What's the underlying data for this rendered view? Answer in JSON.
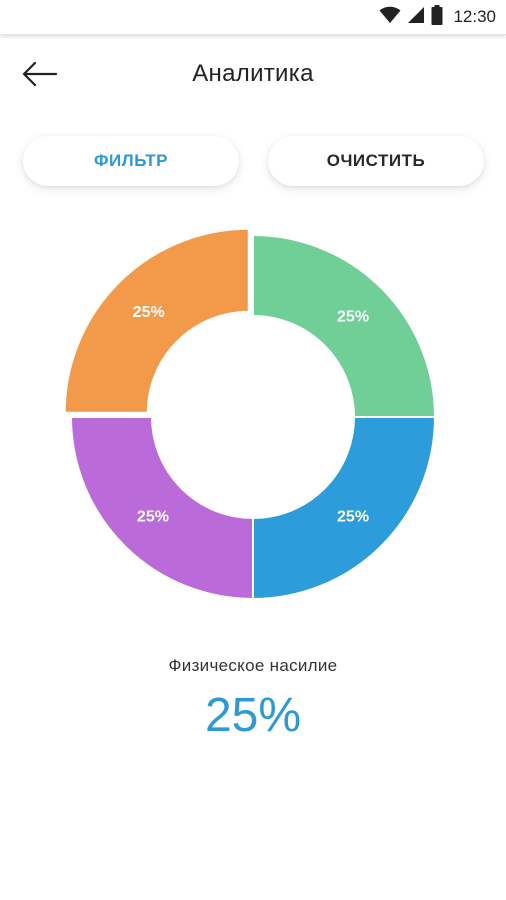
{
  "status_bar": {
    "time": "12:30",
    "icons": [
      "wifi-icon",
      "signal-icon",
      "battery-icon"
    ]
  },
  "header": {
    "back_icon": "arrow-left-icon",
    "title": "Аналитика"
  },
  "buttons": {
    "filter_label": "ФИЛЬТР",
    "clear_label": "ОЧИСТИТЬ"
  },
  "colors": {
    "accent": "#2b9ad7",
    "green": "#6fcf97",
    "blue": "#2d9cdb",
    "purple": "#bb6bd9",
    "orange": "#f2994a"
  },
  "chart_data": {
    "type": "pie",
    "donut": true,
    "categories": [
      "",
      "",
      "",
      ""
    ],
    "values": [
      25,
      25,
      25,
      25
    ],
    "labels": [
      "25%",
      "25%",
      "25%",
      "25%"
    ],
    "colors": [
      "#6fcf97",
      "#2d9cdb",
      "#bb6bd9",
      "#f2994a"
    ],
    "selected_index": 3
  },
  "selection": {
    "label": "Физическое насилие",
    "value": "25%"
  }
}
